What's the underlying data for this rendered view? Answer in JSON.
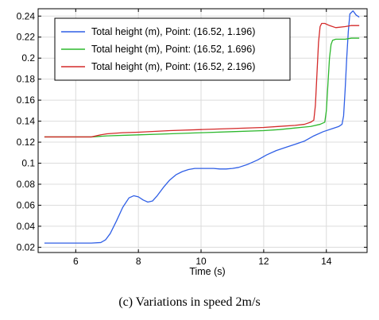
{
  "caption": "(c) Variations in speed 2m/s",
  "chart_data": {
    "type": "line",
    "title": "",
    "xlabel": "Time (s)",
    "ylabel": "",
    "xlim": [
      4.8,
      15.3
    ],
    "ylim": [
      0.015,
      0.247
    ],
    "xticks": [
      6,
      8,
      10,
      12,
      14
    ],
    "yticks": [
      0.02,
      0.04,
      0.06,
      0.08,
      0.1,
      0.12,
      0.14,
      0.16,
      0.18,
      0.2,
      0.22,
      0.24
    ],
    "ytick_labels": [
      "0.02",
      "0.04",
      "0.06",
      "0.08",
      "0.1",
      "0.12",
      "0.14",
      "0.16",
      "0.18",
      "0.2",
      "0.22",
      "0.24"
    ],
    "grid": true,
    "legend_position": "top-left",
    "series": [
      {
        "name": "Total height (m), Point: (16.52, 1.196)",
        "color": "#2f5fe6",
        "x": [
          5.0,
          6.5,
          6.8,
          6.95,
          7.1,
          7.3,
          7.5,
          7.7,
          7.85,
          8.0,
          8.15,
          8.3,
          8.45,
          8.6,
          8.8,
          9.0,
          9.2,
          9.4,
          9.6,
          9.8,
          10.0,
          10.2,
          10.4,
          10.6,
          10.8,
          11.0,
          11.2,
          11.5,
          11.8,
          12.1,
          12.4,
          12.7,
          13.0,
          13.3,
          13.6,
          13.9,
          14.2,
          14.4,
          14.5,
          14.55,
          14.6,
          14.65,
          14.7,
          14.75,
          14.85,
          14.95,
          15.05
        ],
        "values": [
          0.024,
          0.024,
          0.0245,
          0.027,
          0.033,
          0.045,
          0.058,
          0.067,
          0.069,
          0.068,
          0.065,
          0.063,
          0.064,
          0.069,
          0.077,
          0.084,
          0.089,
          0.092,
          0.094,
          0.095,
          0.095,
          0.095,
          0.095,
          0.0945,
          0.0945,
          0.095,
          0.096,
          0.099,
          0.103,
          0.108,
          0.112,
          0.115,
          0.118,
          0.121,
          0.126,
          0.13,
          0.133,
          0.135,
          0.137,
          0.145,
          0.17,
          0.2,
          0.225,
          0.242,
          0.245,
          0.241,
          0.239
        ]
      },
      {
        "name": "Total height (m), Point: (16.52, 1.696)",
        "color": "#2db82d",
        "x": [
          5.0,
          6.0,
          6.5,
          7.0,
          7.5,
          8.0,
          9.0,
          10.0,
          11.0,
          12.0,
          12.5,
          13.0,
          13.5,
          13.8,
          13.95,
          14.0,
          14.05,
          14.1,
          14.15,
          14.2,
          14.3,
          14.6,
          14.8,
          15.05
        ],
        "values": [
          0.125,
          0.125,
          0.125,
          0.126,
          0.1265,
          0.127,
          0.128,
          0.129,
          0.13,
          0.131,
          0.132,
          0.1335,
          0.135,
          0.137,
          0.139,
          0.15,
          0.175,
          0.2,
          0.213,
          0.217,
          0.218,
          0.218,
          0.219,
          0.219
        ]
      },
      {
        "name": "Total height (m), Point: (16.52, 2.196)",
        "color": "#d42a2a",
        "x": [
          5.0,
          6.0,
          6.5,
          6.8,
          7.0,
          7.5,
          8.0,
          9.0,
          10.0,
          11.0,
          12.0,
          12.5,
          13.0,
          13.3,
          13.5,
          13.6,
          13.65,
          13.7,
          13.75,
          13.8,
          13.85,
          13.95,
          14.1,
          14.3,
          14.6,
          14.8,
          15.05
        ],
        "values": [
          0.125,
          0.125,
          0.125,
          0.127,
          0.128,
          0.129,
          0.1295,
          0.131,
          0.132,
          0.133,
          0.134,
          0.135,
          0.136,
          0.137,
          0.139,
          0.141,
          0.155,
          0.185,
          0.215,
          0.23,
          0.233,
          0.233,
          0.231,
          0.229,
          0.23,
          0.231,
          0.231
        ]
      }
    ]
  }
}
